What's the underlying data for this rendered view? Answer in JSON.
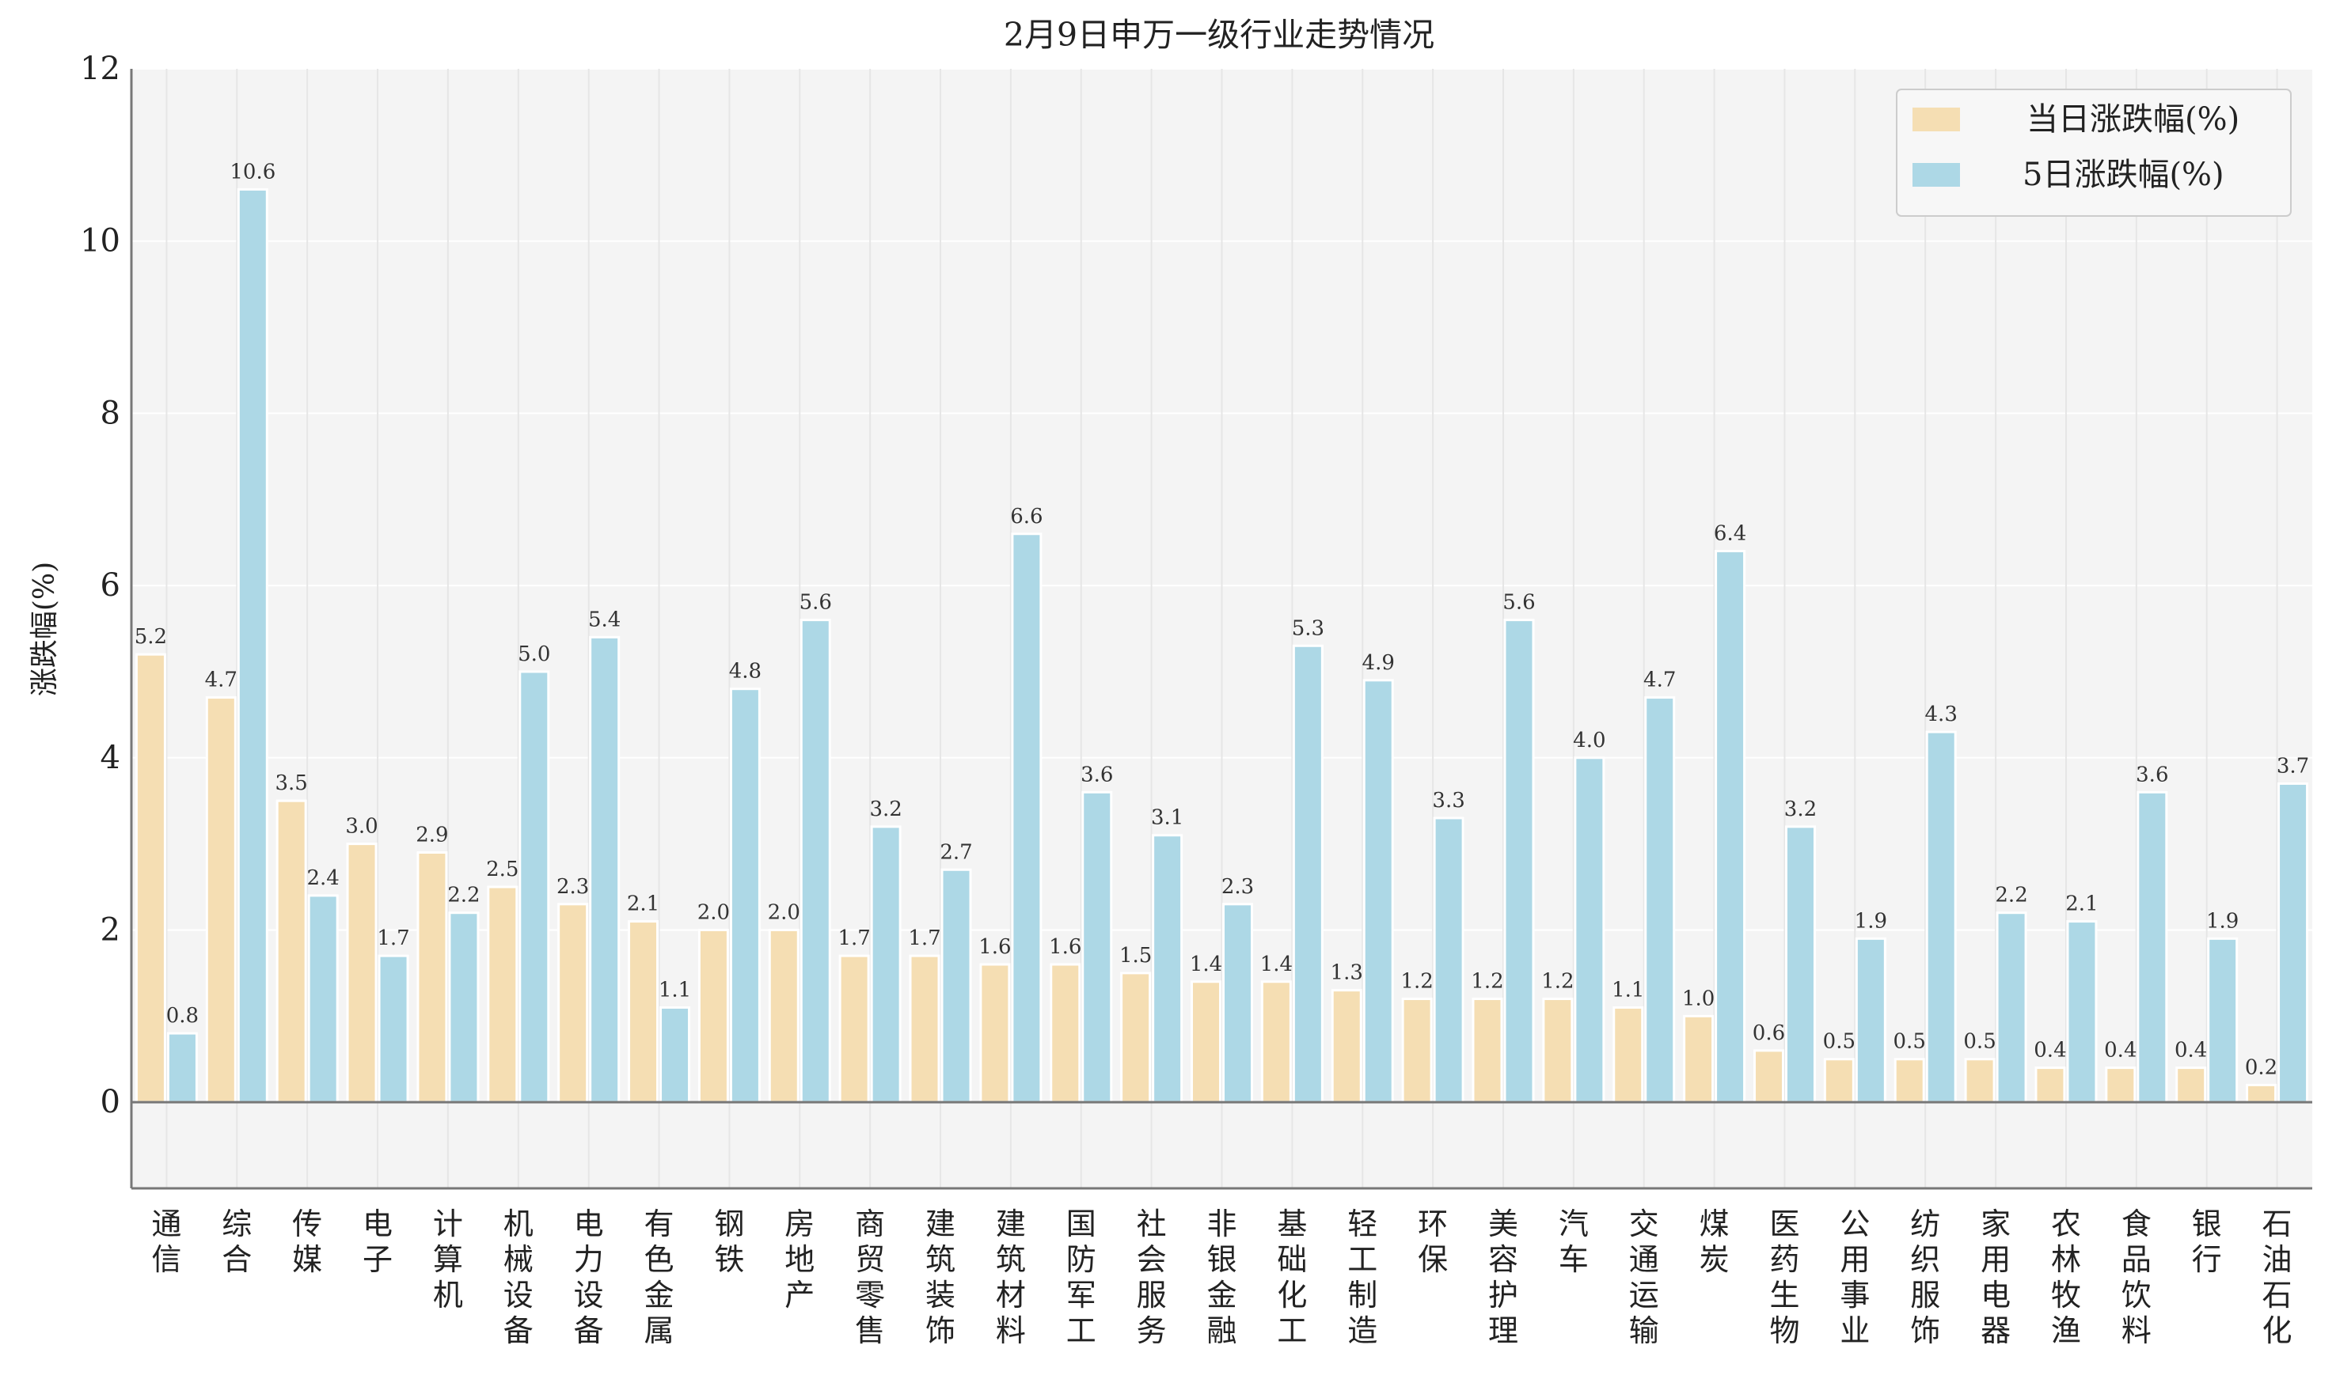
{
  "chart_data": {
    "type": "bar",
    "title": "2月9日申万一级行业走势情况",
    "xlabel": "",
    "ylabel": "涨跌幅(%)",
    "ylim": [
      -1,
      12
    ],
    "yticks": [
      0,
      2,
      4,
      6,
      8,
      10,
      12
    ],
    "grid": true,
    "legend_position": "top-right",
    "categories": [
      "通信",
      "综合",
      "传媒",
      "电子",
      "计算机",
      "机械设备",
      "电力设备",
      "有色金属",
      "钢铁",
      "房地产",
      "商贸零售",
      "建筑装饰",
      "建筑材料",
      "国防军工",
      "社会服务",
      "非银金融",
      "基础化工",
      "轻工制造",
      "环保",
      "美容护理",
      "汽车",
      "交通运输",
      "煤炭",
      "医药生物",
      "公用事业",
      "纺织服饰",
      "家用电器",
      "农林牧渔",
      "食品饮料",
      "银行",
      "石油石化"
    ],
    "series": [
      {
        "name": "当日涨跌幅(%)",
        "color": "#f5deb3",
        "values": [
          5.2,
          4.7,
          3.5,
          3.0,
          2.9,
          2.5,
          2.3,
          2.1,
          2.0,
          2.0,
          1.7,
          1.7,
          1.6,
          1.6,
          1.5,
          1.4,
          1.4,
          1.3,
          1.2,
          1.2,
          1.2,
          1.1,
          1.0,
          0.6,
          0.5,
          0.5,
          0.5,
          0.4,
          0.4,
          0.4,
          0.2
        ]
      },
      {
        "name": "5日涨跌幅(%)",
        "color": "#add8e6",
        "values": [
          0.8,
          10.6,
          2.4,
          1.7,
          2.2,
          5.0,
          5.4,
          1.1,
          4.8,
          5.6,
          3.2,
          2.7,
          6.6,
          3.6,
          3.1,
          2.3,
          5.3,
          4.9,
          3.3,
          5.6,
          4.0,
          4.7,
          6.4,
          3.2,
          1.9,
          4.3,
          2.2,
          2.1,
          3.6,
          1.9,
          3.7
        ]
      }
    ]
  }
}
